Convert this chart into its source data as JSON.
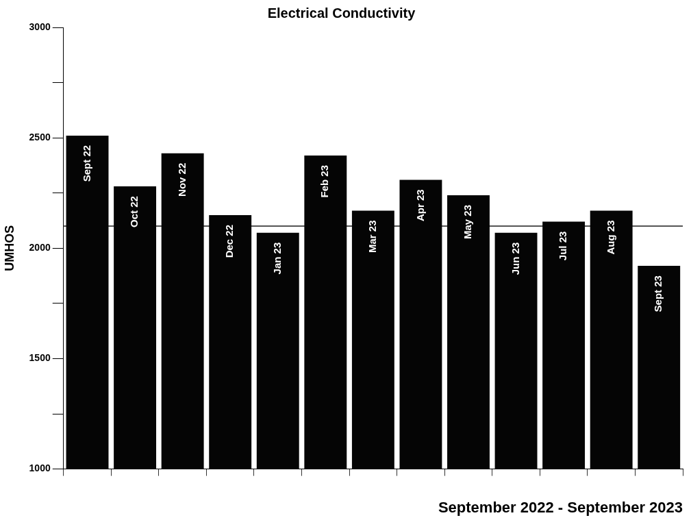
{
  "chart_data": {
    "type": "bar",
    "title": "Electrical Conductivity",
    "xlabel": "September 2022 - September 2023",
    "ylabel": "UMHOS",
    "categories": [
      "Sept 22",
      "Oct 22",
      "Nov 22",
      "Dec 22",
      "Jan 23",
      "Feb 23",
      "Mar 23",
      "Apr 23",
      "May 23",
      "Jun 23",
      "Jul 23",
      "Aug 23",
      "Sept 23"
    ],
    "values": [
      2510,
      2280,
      2430,
      2150,
      2070,
      2420,
      2170,
      2310,
      2240,
      2070,
      2120,
      2170,
      1920
    ],
    "color": "#050505",
    "ylim": [
      1000,
      3000
    ],
    "yticks": [
      1000,
      {
        "value": 1250,
        "label": null
      },
      1500,
      {
        "value": 1750,
        "label": null
      },
      2000,
      {
        "value": 2250,
        "label": null
      },
      2500,
      {
        "value": 2750,
        "label": null
      },
      3000
    ],
    "ref_lines": [
      {
        "axis": "y",
        "value": 2100,
        "color": "#555555"
      }
    ],
    "grid": false,
    "legend": false
  }
}
